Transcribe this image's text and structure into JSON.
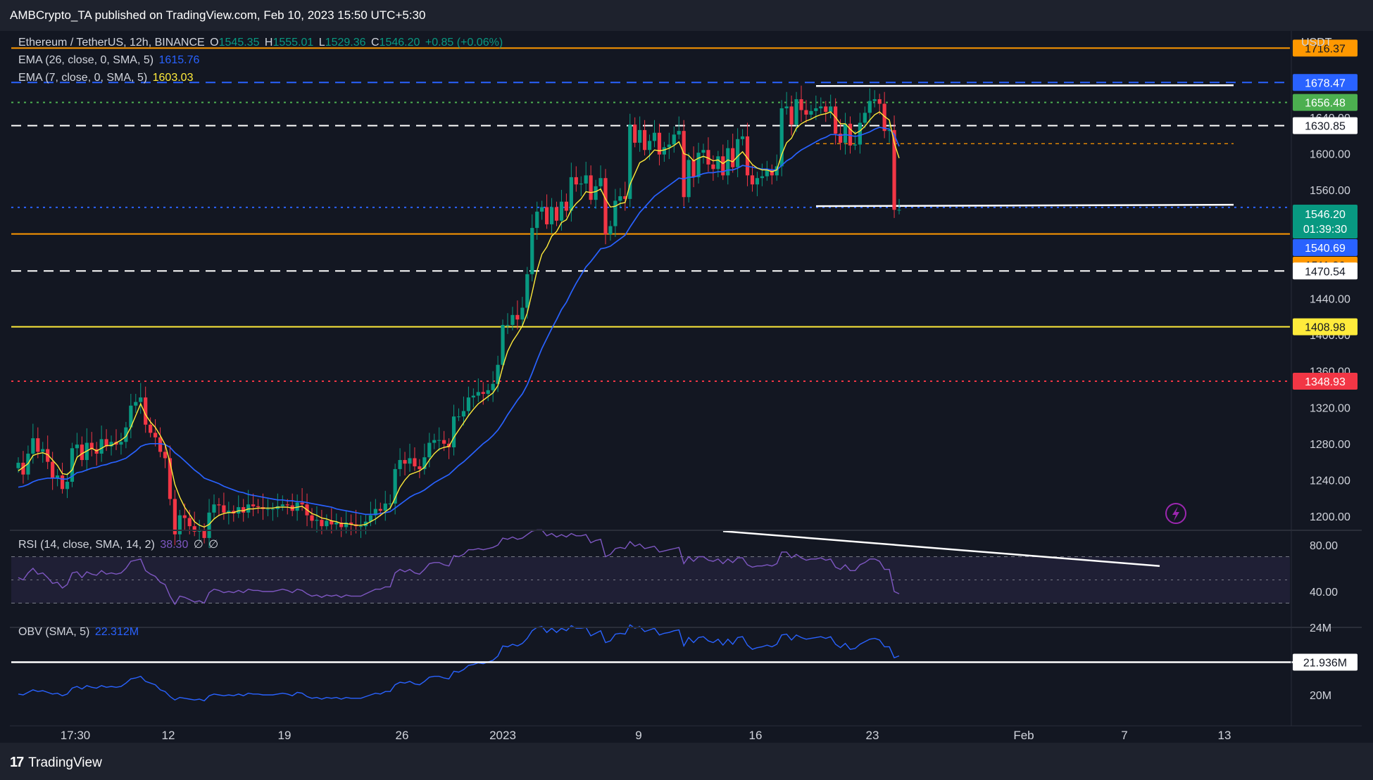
{
  "header": {
    "publisher_text": "AMBCrypto_TA published on TradingView.com, Feb 10, 2023 15:50 UTC+5:30"
  },
  "footer": {
    "brand": "TradingView"
  },
  "legend": {
    "symbol": "Ethereum / TetherUS, 12h, BINANCE",
    "o_label": "O",
    "o_value": "1545.35",
    "h_label": "H",
    "h_value": "1555.01",
    "l_label": "L",
    "l_value": "1529.36",
    "c_label": "C",
    "c_value": "1546.20",
    "change": "+0.85 (+0.06%)",
    "ema26_label": "EMA (26, close, 0, SMA, 5)",
    "ema26_value": "1615.76",
    "ema7_label": "EMA (7, close, 0, SMA, 5)",
    "ema7_value": "1603.03",
    "rsi_label": "RSI (14, close, SMA, 14, 2)",
    "rsi_value": "38.30",
    "rsi_extra1": "∅",
    "rsi_extra2": "∅",
    "obv_label": "OBV (SMA, 5)",
    "obv_value": "22.312M"
  },
  "price_axis": {
    "currency": "USDT",
    "ticks": [
      "1600.00",
      "1560.00",
      "1440.00",
      "1400.00",
      "1360.00",
      "1320.00",
      "1280.00",
      "1240.00",
      "1200.00"
    ],
    "hidden_tick": "1640.00"
  },
  "price_badges": [
    {
      "label": "1716.37",
      "value": 1716.37,
      "bg": "#ff9800",
      "fg": "#131722"
    },
    {
      "label": "1678.47",
      "value": 1678.47,
      "bg": "#2962ff",
      "fg": "#ffffff"
    },
    {
      "label": "1656.48",
      "value": 1656.48,
      "bg": "#4caf50",
      "fg": "#ffffff"
    },
    {
      "label": "1630.85",
      "value": 1630.85,
      "bg": "#ffffff",
      "fg": "#131722"
    },
    {
      "label": "1540.69",
      "value": 1540.69,
      "bg": "#2962ff",
      "fg": "#ffffff"
    },
    {
      "label": "1511.36",
      "value": 1511.36,
      "bg": "#ff9800",
      "fg": "#131722"
    },
    {
      "label": "1470.54",
      "value": 1470.54,
      "bg": "#ffffff",
      "fg": "#131722"
    },
    {
      "label": "1408.98",
      "value": 1408.98,
      "bg": "#ffeb3b",
      "fg": "#131722"
    },
    {
      "label": "1348.93",
      "value": 1348.93,
      "bg": "#f23645",
      "fg": "#ffffff"
    }
  ],
  "last_price": {
    "label": "1546.20",
    "countdown": "01:39:30",
    "value": 1546.2,
    "bg": "#089981",
    "fg": "#ffffff"
  },
  "rsi_axis": {
    "ticks": [
      "80.00",
      "40.00"
    ]
  },
  "obv_axis": {
    "ticks": [
      "24M",
      "20M"
    ],
    "badge": "21.936M"
  },
  "time_axis": {
    "labels": [
      "17:30",
      "12",
      "19",
      "26",
      "2023",
      "9",
      "16",
      "23",
      "Feb",
      "7",
      "13"
    ]
  },
  "colors": {
    "up": "#089981",
    "down": "#f23645",
    "ema7": "#ffeb3b",
    "ema26": "#2962ff",
    "rsi": "#7e57c2",
    "obv": "#2962ff",
    "bg": "#131722"
  },
  "chart_data": {
    "type": "candlestick",
    "symbol": "ETH/USDT",
    "interval": "12h",
    "y_range_price": [
      1186,
      1726
    ],
    "horizontal_levels": [
      {
        "value": 1716.37,
        "color": "#ff9800",
        "style": "solid"
      },
      {
        "value": 1678.47,
        "color": "#2962ff",
        "style": "dashed"
      },
      {
        "value": 1656.48,
        "color": "#4caf50",
        "style": "dotted"
      },
      {
        "value": 1630.85,
        "color": "#ffffff",
        "style": "dashed"
      },
      {
        "value": 1540.69,
        "color": "#2962ff",
        "style": "dotted"
      },
      {
        "value": 1511.36,
        "color": "#ff9800",
        "style": "solid"
      },
      {
        "value": 1470.54,
        "color": "#ffffff",
        "style": "dashed"
      },
      {
        "value": 1408.98,
        "color": "#ffeb3b",
        "style": "solid"
      },
      {
        "value": 1348.93,
        "color": "#f23645",
        "style": "dotted"
      }
    ],
    "close": [
      1267,
      1254,
      1277,
      1294,
      1279,
      1282,
      1268,
      1250,
      1253,
      1238,
      1246,
      1283,
      1287,
      1270,
      1289,
      1282,
      1277,
      1293,
      1285,
      1290,
      1287,
      1290,
      1306,
      1330,
      1334,
      1339,
      1309,
      1300,
      1295,
      1279,
      1272,
      1227,
      1188,
      1209,
      1206,
      1197,
      1191,
      1192,
      1184,
      1212,
      1221,
      1220,
      1212,
      1214,
      1211,
      1218,
      1212,
      1221,
      1219,
      1218,
      1216,
      1216,
      1216,
      1219,
      1221,
      1220,
      1214,
      1223,
      1221,
      1209,
      1203,
      1204,
      1197,
      1203,
      1199,
      1201,
      1196,
      1201,
      1199,
      1197,
      1197,
      1202,
      1209,
      1216,
      1214,
      1222,
      1222,
      1260,
      1270,
      1266,
      1272,
      1263,
      1260,
      1273,
      1289,
      1292,
      1292,
      1288,
      1284,
      1318,
      1318,
      1324,
      1339,
      1341,
      1345,
      1343,
      1347,
      1354,
      1375,
      1419,
      1419,
      1430,
      1425,
      1438,
      1475,
      1526,
      1544,
      1549,
      1530,
      1549,
      1534,
      1555,
      1545,
      1582,
      1574,
      1575,
      1584,
      1557,
      1572,
      1581,
      1519,
      1528,
      1556,
      1561,
      1558,
      1640,
      1620,
      1634,
      1612,
      1622,
      1631,
      1607,
      1615,
      1618,
      1629,
      1633,
      1560,
      1601,
      1582,
      1609,
      1612,
      1596,
      1591,
      1605,
      1584,
      1614,
      1593,
      1624,
      1627,
      1584,
      1574,
      1581,
      1583,
      1590,
      1584,
      1594,
      1658,
      1660,
      1640,
      1668,
      1656,
      1651,
      1655,
      1658,
      1660,
      1654,
      1660,
      1630,
      1620,
      1641,
      1617,
      1618,
      1642,
      1653,
      1666,
      1668,
      1663,
      1633,
      1634,
      1546,
      1546
    ],
    "ema7": [
      1258,
      1262,
      1266,
      1275,
      1277,
      1278,
      1276,
      1270,
      1264,
      1255,
      1254,
      1259,
      1273,
      1277,
      1280,
      1283,
      1280,
      1283,
      1286,
      1286,
      1289,
      1292,
      1296,
      1306,
      1319,
      1332,
      1320,
      1312,
      1306,
      1297,
      1287,
      1267,
      1243,
      1229,
      1218,
      1210,
      1202,
      1198,
      1196,
      1199,
      1205,
      1209,
      1211,
      1212,
      1212,
      1214,
      1214,
      1216,
      1216,
      1217,
      1217,
      1217,
      1217,
      1218,
      1218,
      1218,
      1217,
      1218,
      1219,
      1215,
      1211,
      1209,
      1206,
      1205,
      1203,
      1202,
      1200,
      1200,
      1199,
      1198,
      1198,
      1199,
      1202,
      1205,
      1209,
      1213,
      1217,
      1228,
      1240,
      1248,
      1254,
      1256,
      1258,
      1262,
      1270,
      1277,
      1282,
      1284,
      1285,
      1295,
      1303,
      1311,
      1319,
      1326,
      1332,
      1336,
      1340,
      1344,
      1352,
      1373,
      1390,
      1401,
      1409,
      1418,
      1432,
      1455,
      1479,
      1497,
      1505,
      1517,
      1522,
      1532,
      1535,
      1546,
      1553,
      1558,
      1566,
      1565,
      1566,
      1569,
      1558,
      1549,
      1550,
      1553,
      1554,
      1574,
      1586,
      1598,
      1601,
      1606,
      1612,
      1611,
      1612,
      1614,
      1617,
      1621,
      1608,
      1606,
      1600,
      1603,
      1605,
      1603,
      1600,
      1601,
      1597,
      1601,
      1599,
      1605,
      1610,
      1603,
      1596,
      1592,
      1590,
      1590,
      1588,
      1590,
      1607,
      1620,
      1625,
      1636,
      1641,
      1644,
      1646,
      1649,
      1651,
      1652,
      1654,
      1648,
      1641,
      1641,
      1635,
      1630,
      1633,
      1638,
      1645,
      1651,
      1654,
      1649,
      1645,
      1620,
      1603
    ],
    "ema26": [
      1240,
      1241,
      1243,
      1246,
      1248,
      1249,
      1250,
      1250,
      1250,
      1249,
      1249,
      1252,
      1256,
      1257,
      1259,
      1261,
      1262,
      1264,
      1265,
      1267,
      1268,
      1270,
      1272,
      1276,
      1280,
      1285,
      1287,
      1288,
      1288,
      1288,
      1287,
      1284,
      1278,
      1274,
      1269,
      1264,
      1259,
      1255,
      1250,
      1248,
      1246,
      1244,
      1241,
      1239,
      1237,
      1235,
      1234,
      1232,
      1231,
      1230,
      1229,
      1228,
      1227,
      1226,
      1226,
      1225,
      1225,
      1224,
      1224,
      1223,
      1222,
      1221,
      1220,
      1219,
      1218,
      1216,
      1215,
      1214,
      1213,
      1212,
      1211,
      1210,
      1210,
      1210,
      1211,
      1212,
      1213,
      1217,
      1221,
      1225,
      1229,
      1232,
      1234,
      1237,
      1241,
      1245,
      1248,
      1251,
      1254,
      1259,
      1264,
      1268,
      1273,
      1278,
      1283,
      1288,
      1292,
      1297,
      1303,
      1311,
      1320,
      1328,
      1336,
      1343,
      1353,
      1366,
      1380,
      1393,
      1404,
      1415,
      1425,
      1436,
      1444,
      1455,
      1465,
      1474,
      1483,
      1489,
      1496,
      1503,
      1504,
      1506,
      1510,
      1514,
      1518,
      1527,
      1535,
      1543,
      1549,
      1555,
      1561,
      1565,
      1569,
      1573,
      1577,
      1581,
      1580,
      1582,
      1582,
      1584,
      1586,
      1587,
      1587,
      1588,
      1588,
      1590,
      1590,
      1592,
      1595,
      1594,
      1593,
      1592,
      1591,
      1591,
      1590,
      1590,
      1595,
      1600,
      1603,
      1608,
      1612,
      1615,
      1618,
      1621,
      1624,
      1626,
      1629,
      1629,
      1628,
      1629,
      1628,
      1627,
      1628,
      1630,
      1632,
      1635,
      1637,
      1636,
      1635,
      1629,
      1616
    ],
    "rsi": [
      52,
      50,
      56,
      60,
      55,
      56,
      52,
      47,
      48,
      43,
      46,
      56,
      57,
      52,
      57,
      55,
      54,
      58,
      55,
      56,
      55,
      56,
      60,
      66,
      67,
      68,
      58,
      55,
      53,
      48,
      46,
      36,
      29,
      36,
      35,
      33,
      31,
      32,
      30,
      39,
      42,
      41,
      39,
      40,
      39,
      41,
      39,
      42,
      41,
      41,
      40,
      40,
      40,
      41,
      42,
      41,
      39,
      42,
      41,
      38,
      36,
      37,
      35,
      37,
      36,
      37,
      35,
      37,
      36,
      36,
      36,
      38,
      40,
      42,
      42,
      44,
      44,
      56,
      59,
      57,
      59,
      56,
      55,
      59,
      64,
      65,
      65,
      63,
      62,
      71,
      70,
      72,
      76,
      76,
      77,
      76,
      77,
      78,
      80,
      86,
      85,
      87,
      85,
      86,
      89,
      92,
      93,
      93,
      88,
      90,
      87,
      89,
      87,
      90,
      88,
      88,
      89,
      82,
      84,
      85,
      70,
      72,
      77,
      78,
      77,
      83,
      79,
      81,
      77,
      78,
      79,
      74,
      75,
      76,
      77,
      78,
      64,
      70,
      66,
      70,
      70,
      67,
      66,
      68,
      64,
      68,
      65,
      69,
      69,
      63,
      61,
      62,
      62,
      63,
      62,
      64,
      74,
      74,
      69,
      72,
      69,
      67,
      68,
      68,
      69,
      67,
      68,
      61,
      59,
      63,
      58,
      58,
      63,
      65,
      68,
      68,
      66,
      59,
      59,
      40,
      38
    ],
    "obv": [
      20.05,
      20.0,
      20.15,
      20.3,
      20.2,
      20.25,
      20.15,
      20.05,
      20.1,
      19.95,
      20.05,
      20.4,
      20.5,
      20.35,
      20.55,
      20.45,
      20.4,
      20.55,
      20.45,
      20.5,
      20.45,
      20.5,
      20.7,
      20.95,
      21.0,
      21.1,
      20.8,
      20.7,
      20.6,
      20.3,
      20.2,
      19.9,
      19.7,
      19.85,
      19.8,
      19.75,
      19.7,
      19.75,
      19.65,
      19.95,
      20.05,
      20.0,
      19.95,
      20.0,
      19.95,
      20.05,
      19.95,
      20.1,
      20.05,
      20.05,
      20.0,
      20.0,
      20.0,
      20.05,
      20.1,
      20.05,
      19.95,
      20.15,
      20.1,
      19.9,
      19.8,
      19.85,
      19.75,
      19.85,
      19.8,
      19.85,
      19.75,
      19.85,
      19.8,
      19.8,
      19.8,
      19.9,
      20.0,
      20.1,
      20.05,
      20.2,
      20.2,
      20.6,
      20.75,
      20.7,
      20.8,
      20.65,
      20.6,
      20.8,
      21.05,
      21.1,
      21.1,
      21.0,
      20.95,
      21.4,
      21.35,
      21.5,
      21.75,
      21.8,
      21.9,
      21.85,
      21.95,
      22.05,
      22.3,
      22.9,
      22.85,
      23.0,
      22.9,
      23.05,
      23.35,
      23.8,
      24.0,
      24.05,
      23.7,
      23.95,
      23.7,
      23.95,
      23.8,
      24.1,
      23.95,
      23.95,
      24.0,
      23.5,
      23.65,
      23.8,
      23.1,
      23.2,
      23.6,
      23.65,
      23.6,
      24.15,
      23.95,
      24.05,
      23.75,
      23.85,
      23.95,
      23.55,
      23.65,
      23.7,
      23.8,
      23.85,
      22.9,
      23.4,
      23.1,
      23.4,
      23.45,
      23.2,
      23.1,
      23.3,
      22.95,
      23.3,
      23.0,
      23.4,
      23.45,
      22.95,
      22.7,
      22.8,
      22.85,
      22.95,
      22.85,
      23.0,
      23.55,
      23.6,
      23.25,
      23.55,
      23.4,
      23.3,
      23.35,
      23.4,
      23.45,
      23.35,
      23.45,
      23.0,
      22.8,
      23.05,
      22.7,
      22.75,
      23.0,
      23.15,
      23.3,
      23.35,
      23.25,
      22.85,
      22.85,
      22.2,
      22.312
    ],
    "annotations": {
      "price_range_top": 1678.47,
      "price_range_bottom": 1542,
      "mid_dashed": 1611,
      "obv_support": 21.936,
      "rsi_bands": [
        70,
        50,
        30
      ]
    }
  }
}
